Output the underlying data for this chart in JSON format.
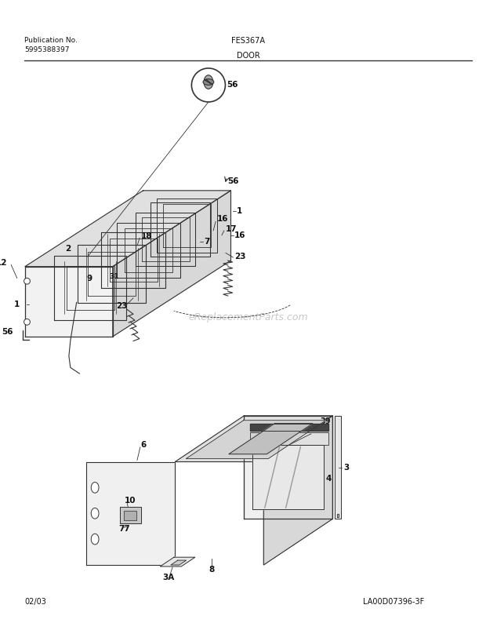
{
  "title_center": "FES367A",
  "section_title": "DOOR",
  "pub_no_label": "Publication No.",
  "pub_no_value": "5995388397",
  "date_label": "02/03",
  "diagram_id": "LA00D07396-3F",
  "watermark": "eReplacementParts.com",
  "bg": "#ffffff",
  "lc": "#333333",
  "tc": "#111111",
  "wc": "#c8c8c8"
}
